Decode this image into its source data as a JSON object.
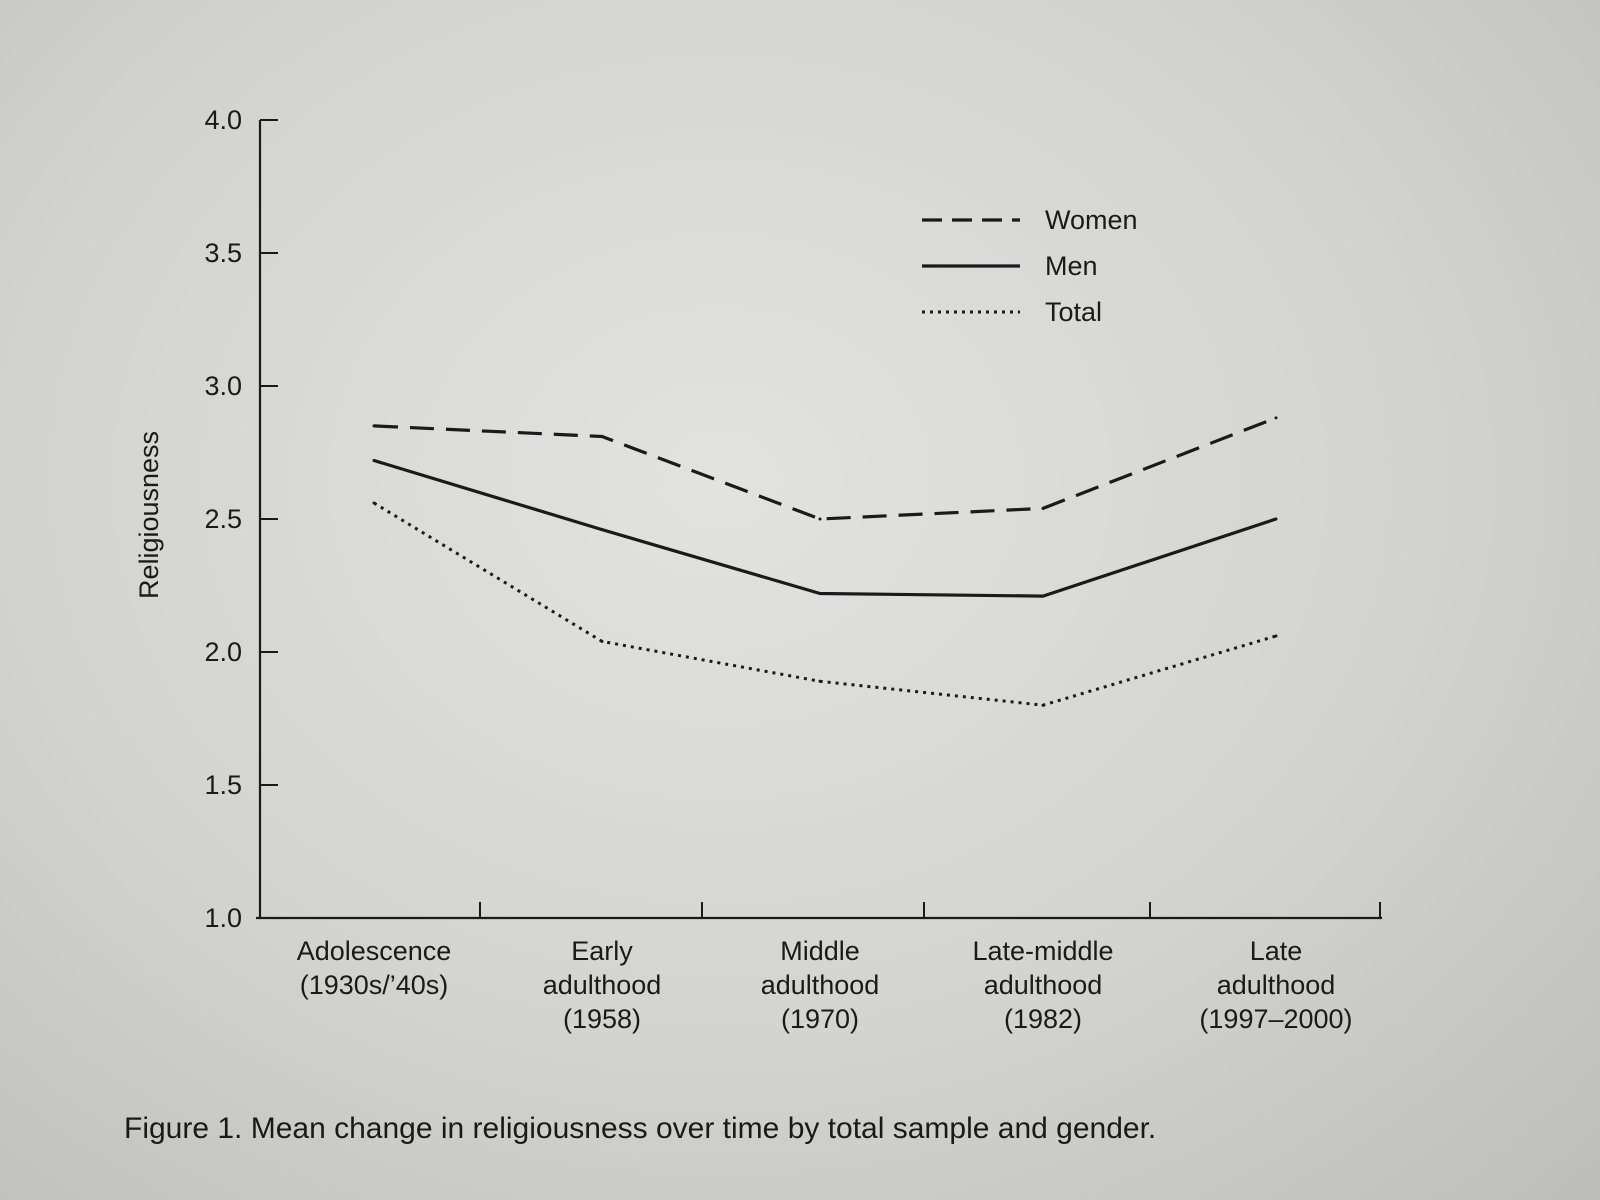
{
  "caption": {
    "label": "Figure 1.",
    "text": "Mean change in religiousness over time by total sample and gender."
  },
  "chart_data": {
    "type": "line",
    "ylabel": "Religiousness",
    "xlabel": "",
    "ylim": [
      1.0,
      4.0
    ],
    "yticks": [
      "1.0",
      "1.5",
      "2.0",
      "2.5",
      "3.0",
      "3.5",
      "4.0"
    ],
    "categories": [
      [
        "Adolescence",
        "(1930s/’40s)"
      ],
      [
        "Early",
        "adulthood",
        "(1958)"
      ],
      [
        "Middle",
        "adulthood",
        "(1970)"
      ],
      [
        "Late-middle",
        "adulthood",
        "(1982)"
      ],
      [
        "Late",
        "adulthood",
        "(1997–2000)"
      ]
    ],
    "series": [
      {
        "name": "Women",
        "style": "dashed",
        "values": [
          2.85,
          2.81,
          2.5,
          2.54,
          2.88
        ]
      },
      {
        "name": "Men",
        "style": "solid",
        "values": [
          2.72,
          2.46,
          2.22,
          2.21,
          2.5
        ]
      },
      {
        "name": "Total",
        "style": "dotted",
        "values": [
          2.56,
          2.04,
          1.89,
          1.8,
          2.06
        ]
      }
    ],
    "legend_position": "top-center",
    "grid": false,
    "line_color": "#1a1a1a"
  }
}
